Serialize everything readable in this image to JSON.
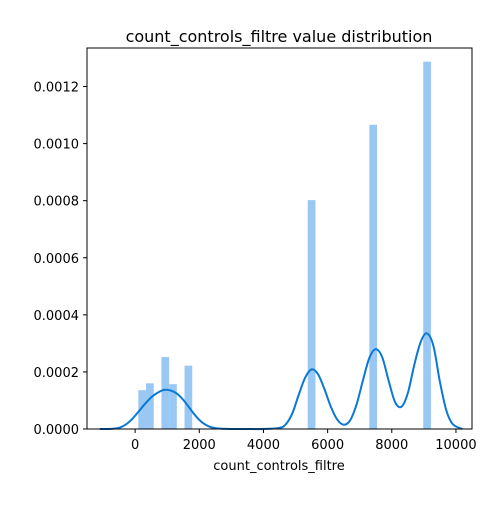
{
  "chart_data": {
    "type": "bar",
    "title": "count_controls_filtre value distribution",
    "xlabel": "count_controls_filtre",
    "ylabel": "",
    "xlim": [
      -1500,
      10500
    ],
    "ylim": [
      0,
      0.001335
    ],
    "x_ticks": [
      0,
      2000,
      4000,
      6000,
      8000,
      10000
    ],
    "y_ticks": [
      0.0,
      0.0002,
      0.0004,
      0.0006,
      0.0008,
      0.001,
      0.0012
    ],
    "y_tick_labels": [
      "0.0000",
      "0.0002",
      "0.0004",
      "0.0006",
      "0.0008",
      "0.0010",
      "0.0012"
    ],
    "grid": false,
    "bar_color": "#99c8f5",
    "kde_color": "#0b78d6",
    "histogram": {
      "bin_width": 240,
      "bins": [
        {
          "x": 100,
          "value": 0.000136
        },
        {
          "x": 340,
          "value": 0.00016
        },
        {
          "x": 820,
          "value": 0.000252
        },
        {
          "x": 1060,
          "value": 0.000157
        },
        {
          "x": 1540,
          "value": 0.000222
        },
        {
          "x": 5380,
          "value": 0.000802
        },
        {
          "x": 7300,
          "value": 0.001066
        },
        {
          "x": 8980,
          "value": 0.001287
        }
      ]
    },
    "kde": {
      "x": [
        -1100,
        -900,
        -700,
        -500,
        -300,
        -100,
        100,
        300,
        500,
        700,
        900,
        1100,
        1300,
        1500,
        1700,
        1900,
        2100,
        2300,
        2500,
        2700,
        3000,
        3500,
        4000,
        4500,
        4700,
        4900,
        5100,
        5300,
        5500,
        5700,
        5900,
        6100,
        6300,
        6500,
        6700,
        6900,
        7100,
        7300,
        7500,
        7700,
        7900,
        8100,
        8300,
        8500,
        8700,
        8900,
        9100,
        9300,
        9500,
        9700,
        9900,
        10200
      ],
      "y": [
        0.0,
        0.0,
        1e-06,
        4e-06,
        1.5e-05,
        3.4e-05,
        6e-05,
        8.7e-05,
        0.000111,
        0.000127,
        0.000137,
        0.000135,
        0.000124,
        0.000102,
        7.3e-05,
        4.4e-05,
        2.2e-05,
        9e-06,
        3e-06,
        1e-06,
        0.0,
        0.0,
        0.0,
        4e-06,
        1.7e-05,
        5.5e-05,
        0.00012,
        0.00018,
        0.000209,
        0.000192,
        0.00014,
        7.8e-05,
        3.3e-05,
        1.5e-05,
        3e-05,
        8.5e-05,
        0.00017,
        0.000249,
        0.00028,
        0.000252,
        0.00017,
        9.5e-05,
        7.8e-05,
        0.000126,
        0.000224,
        0.000305,
        0.000335,
        0.00029,
        0.000165,
        6.5e-05,
        1.7e-05,
        0.0
      ]
    }
  }
}
